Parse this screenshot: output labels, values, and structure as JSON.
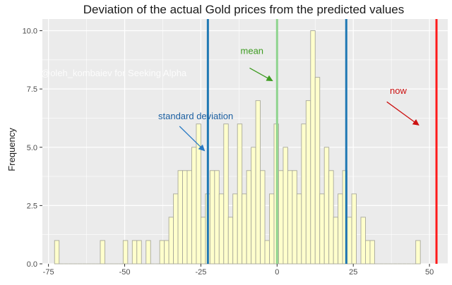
{
  "chart_data": {
    "type": "bar",
    "title": "Deviation of the actual Gold prices from the predicted values",
    "xlabel": "",
    "ylabel": "Frequency",
    "xlim": [
      -77,
      56
    ],
    "ylim": [
      0,
      10.5
    ],
    "bin_width": 1.5,
    "bins_start": -73,
    "x_ticks": [
      -75,
      -50,
      -25,
      0,
      25,
      50
    ],
    "y_ticks": [
      0,
      2.5,
      5,
      7.5,
      10
    ],
    "y_tick_labels": [
      "0.0",
      "2.5",
      "5.0",
      "7.5",
      "10.0"
    ],
    "grid": true,
    "values": [
      1,
      0,
      0,
      0,
      0,
      0,
      0,
      0,
      0,
      0,
      1,
      0,
      0,
      0,
      0,
      1,
      0,
      1,
      1,
      0,
      1,
      0,
      0,
      1,
      1,
      2,
      3,
      4,
      4,
      4,
      5,
      6,
      2,
      3,
      4,
      4,
      3,
      6,
      2,
      3,
      6,
      3,
      4,
      5,
      7,
      4,
      1,
      3,
      6,
      4,
      5,
      4,
      4,
      3,
      6,
      7,
      10,
      8,
      3,
      5,
      4,
      2,
      3,
      4,
      2,
      3,
      0,
      2,
      1,
      1,
      0,
      0,
      0,
      0,
      0,
      0,
      0,
      0,
      0,
      1
    ],
    "fill_color": "#ffffcc",
    "edge_color": "#a8a89a",
    "vlines": [
      {
        "x": -22.7,
        "color": "#1f78b4",
        "width": 3
      },
      {
        "x": 0,
        "color": "#8fd48f",
        "width": 3
      },
      {
        "x": 22.7,
        "color": "#1f78b4",
        "width": 3
      },
      {
        "x": 52.3,
        "color": "#ff1a1a",
        "width": 3
      }
    ],
    "annotations": [
      {
        "text": "mean",
        "color": "#3d9b20",
        "tx": -12,
        "ty": 9.0,
        "ax1": -9,
        "ay1": 8.4,
        "ax2": -1.5,
        "ay2": 7.85
      },
      {
        "text": "standard deviation",
        "color": "#1a5ea0",
        "tx": -39,
        "ty": 6.2,
        "ax1": -32,
        "ay1": 5.9,
        "ax2": -23.8,
        "ay2": 4.85
      },
      {
        "text": "now",
        "color": "#cc1111",
        "tx": 37,
        "ty": 7.3,
        "ax1": 36,
        "ay1": 6.95,
        "ax2": 46.5,
        "ay2": 5.95
      }
    ],
    "watermark": "@oleh_kombaiev for Seeking Alpha"
  }
}
